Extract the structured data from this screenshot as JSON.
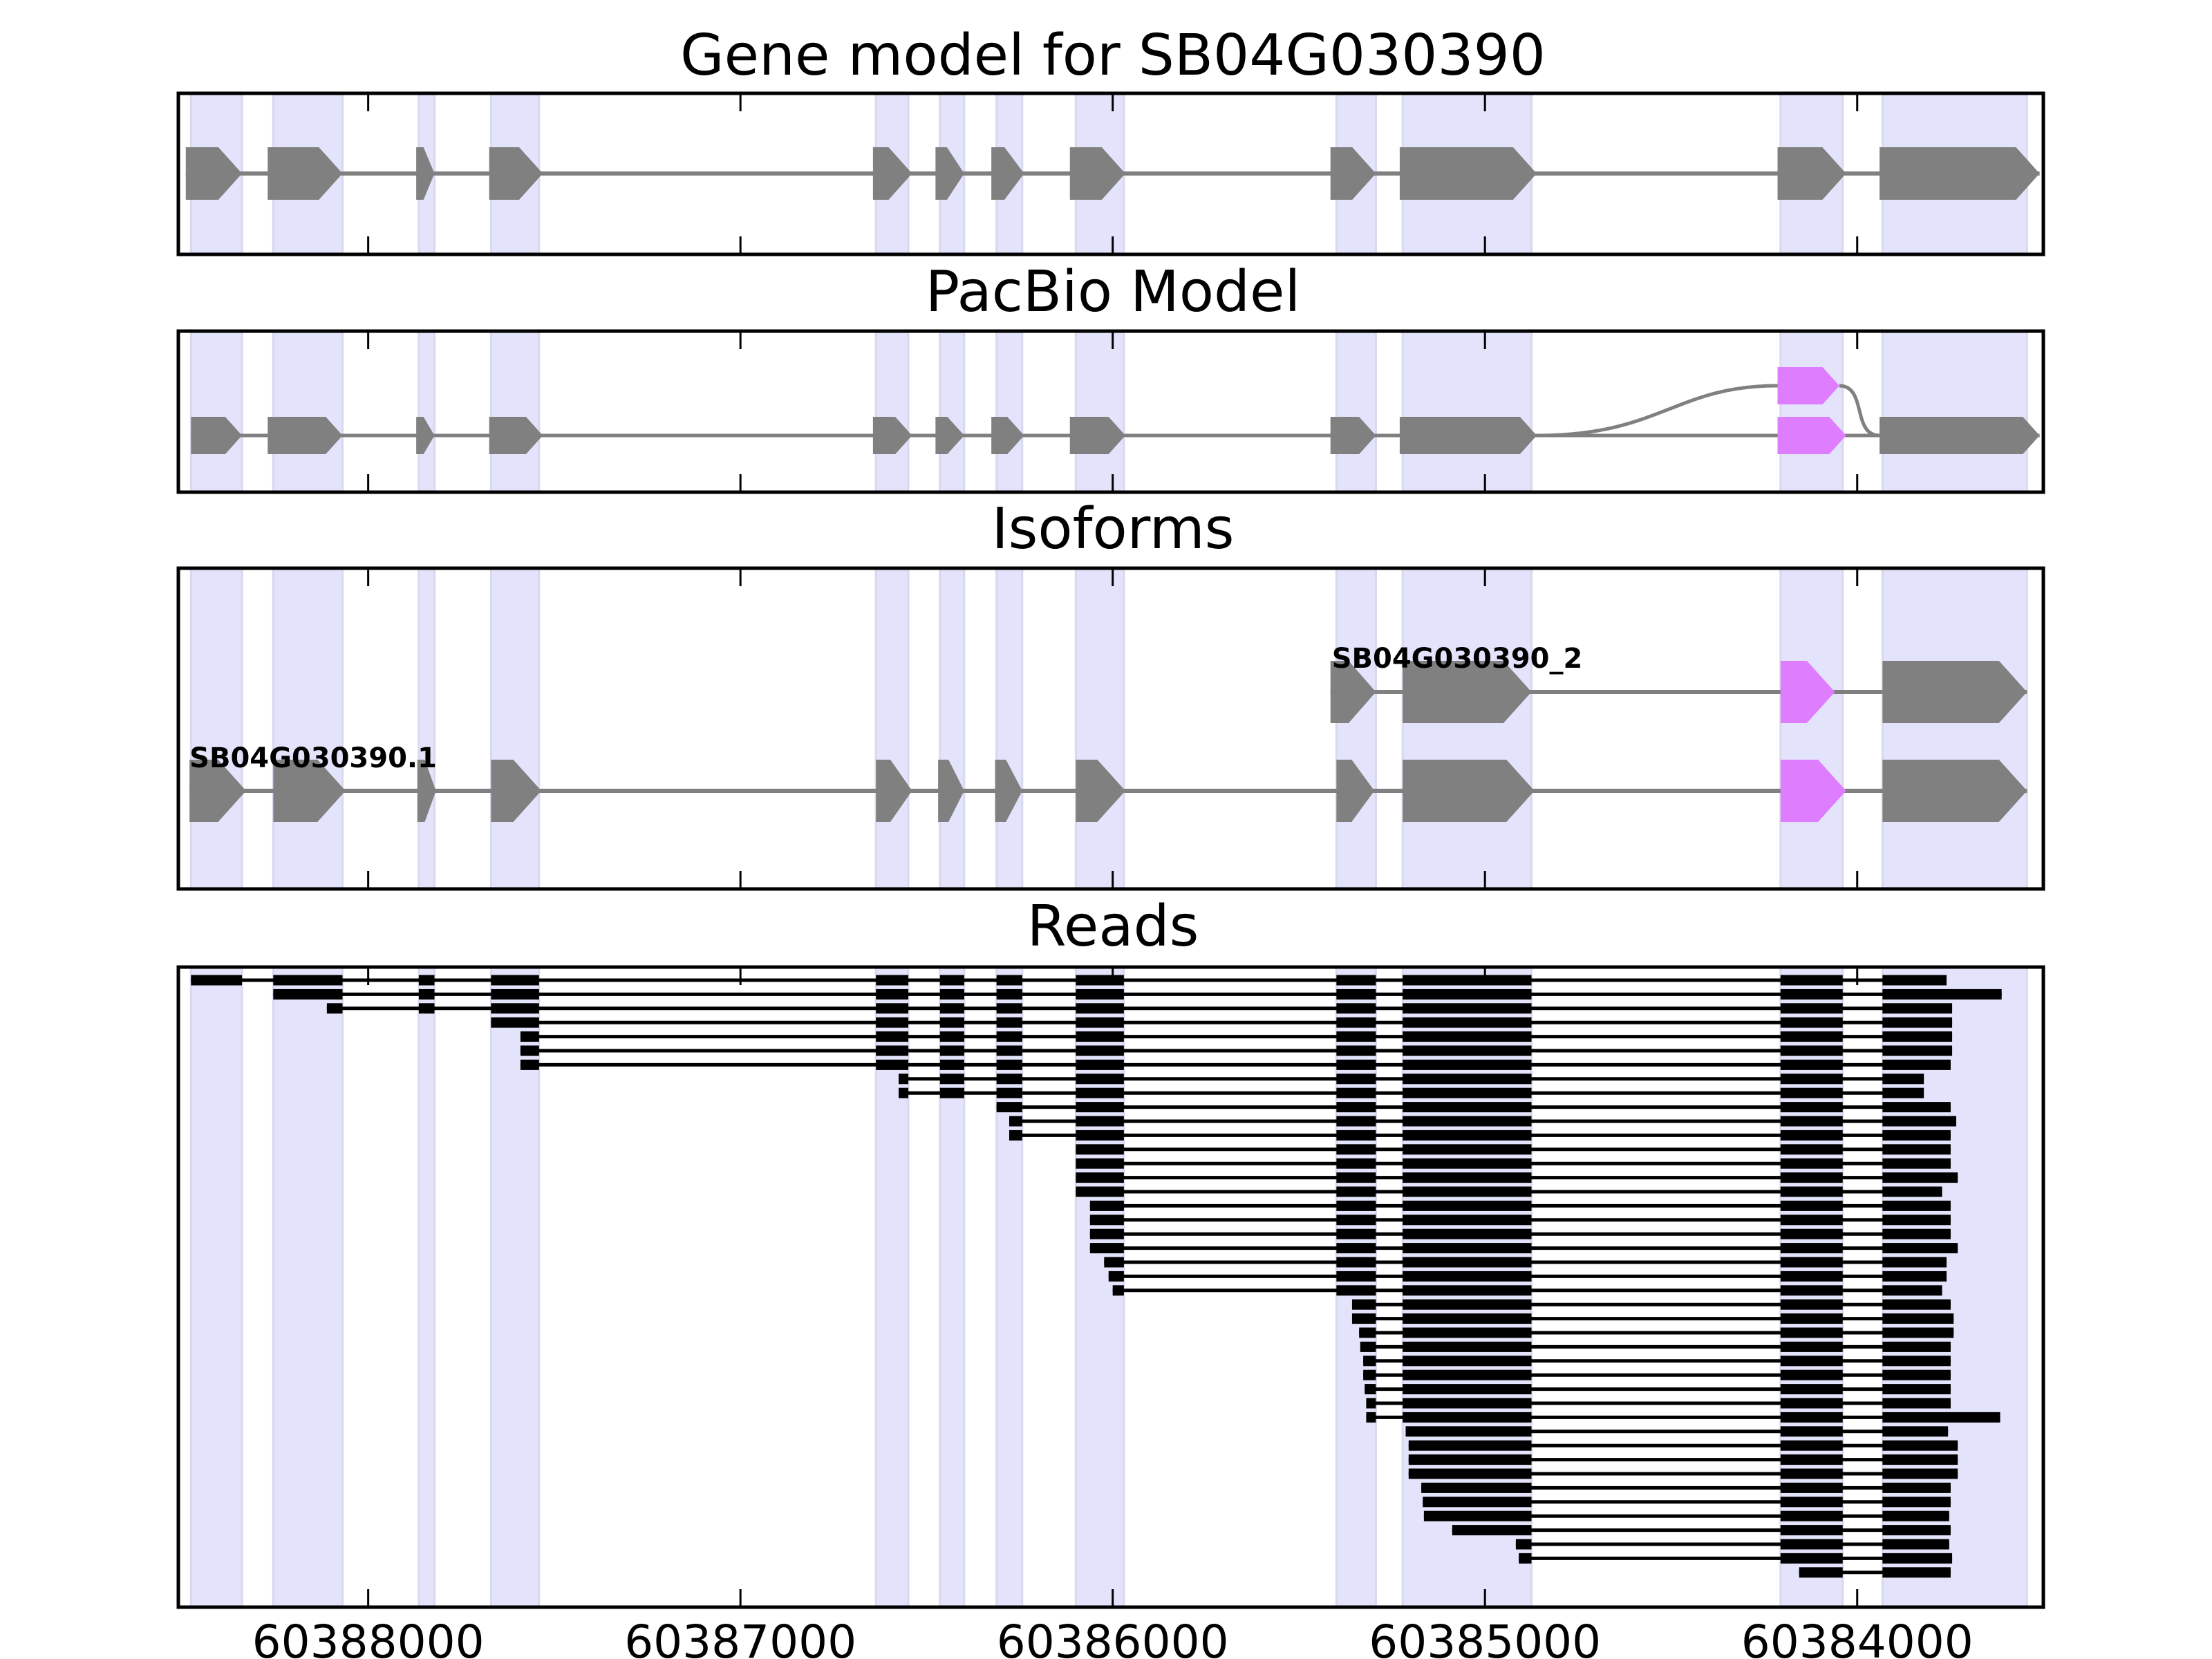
{
  "chart_data": {
    "type": "gene-track",
    "title": "Gene model for SB04G030390",
    "xlabel": "",
    "x_axis": {
      "reversed": true,
      "xlim": [
        60388510,
        60383500
      ],
      "ticks": [
        60388000,
        60387000,
        60386000,
        60385000,
        60384000
      ],
      "tick_labels": [
        "60388000",
        "60387000",
        "60386000",
        "60385000",
        "60384000"
      ]
    },
    "colors": {
      "exon": "#808080",
      "alt_exon": "#df7dff",
      "shade": "#e3e3fb",
      "read": "#000000",
      "intron": "#808080"
    },
    "exon_regions": [
      [
        60388476,
        60388339
      ],
      [
        60388255,
        60388069
      ],
      [
        60387864,
        60387822
      ],
      [
        60387670,
        60387541
      ],
      [
        60386636,
        60386549
      ],
      [
        60386464,
        60386399
      ],
      [
        60386312,
        60386243
      ],
      [
        60386099,
        60385970
      ],
      [
        60385399,
        60385293
      ],
      [
        60385221,
        60384875
      ],
      [
        60384206,
        60384039
      ],
      [
        60383932,
        60383544
      ]
    ],
    "panels": [
      {
        "title": "Gene model for SB04G030390",
        "kind": "gene_model",
        "tracks": [
          {
            "label": "",
            "exons": [
              [
                60388490,
                60388339
              ],
              [
                60388270,
                60388069
              ],
              [
                60387871,
                60387822
              ],
              [
                60387675,
                60387531
              ],
              [
                60386644,
                60386539
              ],
              [
                60386476,
                60386399
              ],
              [
                60386326,
                60386238
              ],
              [
                60386115,
                60385966
              ],
              [
                60385415,
                60385293
              ],
              [
                60385229,
                60384861
              ],
              [
                60384214,
                60384030
              ],
              [
                60383940,
                60383510
              ]
            ],
            "alt": []
          }
        ]
      },
      {
        "title": "PacBio Model",
        "kind": "splice_graph",
        "tracks": [
          {
            "label": "",
            "exons": [
              [
                60388476,
                60388339
              ],
              [
                60388270,
                60388069
              ],
              [
                60387871,
                60387822
              ],
              [
                60387675,
                60387531
              ],
              [
                60386644,
                60386539
              ],
              [
                60386476,
                60386399
              ],
              [
                60386326,
                60386238
              ],
              [
                60386115,
                60385966
              ],
              [
                60385415,
                60385293
              ],
              [
                60385229,
                60384861
              ],
              [
                60383940,
                60383510
              ]
            ],
            "alt": []
          },
          {
            "label": "",
            "exons": [
              [
                60384214,
                60384030
              ]
            ],
            "alt": [
              0
            ]
          },
          {
            "label": "",
            "exons": [
              [
                60384214,
                60384048
              ]
            ],
            "alt": [
              0
            ],
            "upper": true
          }
        ]
      },
      {
        "title": "Isoforms",
        "kind": "isoforms",
        "tracks": [
          {
            "label": "SB04G030390_2",
            "exons": [
              [
                60385415,
                60385293
              ],
              [
                60385221,
                60384875
              ],
              [
                60384206,
                60384060
              ],
              [
                60383932,
                60383544
              ]
            ],
            "alt": [
              2
            ]
          },
          {
            "label": "SB04G030390.1",
            "exons": [
              [
                60388480,
                60388328
              ],
              [
                60388255,
                60388061
              ],
              [
                60387868,
                60387818
              ],
              [
                60387670,
                60387535
              ],
              [
                60386636,
                60386539
              ],
              [
                60386469,
                60386399
              ],
              [
                60386316,
                60386243
              ],
              [
                60386099,
                60385966
              ],
              [
                60385399,
                60385297
              ],
              [
                60385221,
                60384867
              ],
              [
                60384206,
                60384030
              ],
              [
                60383932,
                60383544
              ]
            ],
            "alt": [
              10
            ]
          }
        ]
      },
      {
        "title": "Reads",
        "kind": "reads",
        "read_count": 43,
        "reads": [
          [
            60388476,
            60383760
          ],
          [
            60388259,
            60383612
          ],
          [
            60388111,
            60383745
          ],
          [
            60387670,
            60383745
          ],
          [
            60387591,
            60383745
          ],
          [
            60387591,
            60383745
          ],
          [
            60387591,
            60383749
          ],
          [
            60386575,
            60383821
          ],
          [
            60386575,
            60383821
          ],
          [
            60386316,
            60383749
          ],
          [
            60386278,
            60383734
          ],
          [
            60386278,
            60383749
          ],
          [
            60386099,
            60383749
          ],
          [
            60386099,
            60383749
          ],
          [
            60386099,
            60383730
          ],
          [
            60386099,
            60383772
          ],
          [
            60386061,
            60383749
          ],
          [
            60386061,
            60383749
          ],
          [
            60386061,
            60383749
          ],
          [
            60386061,
            60383730
          ],
          [
            60386023,
            60383760
          ],
          [
            60386011,
            60383760
          ],
          [
            60386000,
            60383772
          ],
          [
            60385357,
            60383749
          ],
          [
            60385357,
            60383741
          ],
          [
            60385338,
            60383741
          ],
          [
            60385335,
            60383749
          ],
          [
            60385327,
            60383749
          ],
          [
            60385327,
            60383749
          ],
          [
            60385323,
            60383749
          ],
          [
            60385319,
            60383749
          ],
          [
            60385319,
            60383616
          ],
          [
            60385213,
            60383756
          ],
          [
            60385205,
            60383730
          ],
          [
            60385205,
            60383730
          ],
          [
            60385205,
            60383730
          ],
          [
            60385171,
            60383749
          ],
          [
            60385167,
            60383749
          ],
          [
            60385164,
            60383753
          ],
          [
            60385088,
            60383749
          ],
          [
            60384917,
            60383753
          ],
          [
            60384909,
            60383745
          ],
          [
            60384156,
            60383749
          ]
        ]
      }
    ]
  }
}
